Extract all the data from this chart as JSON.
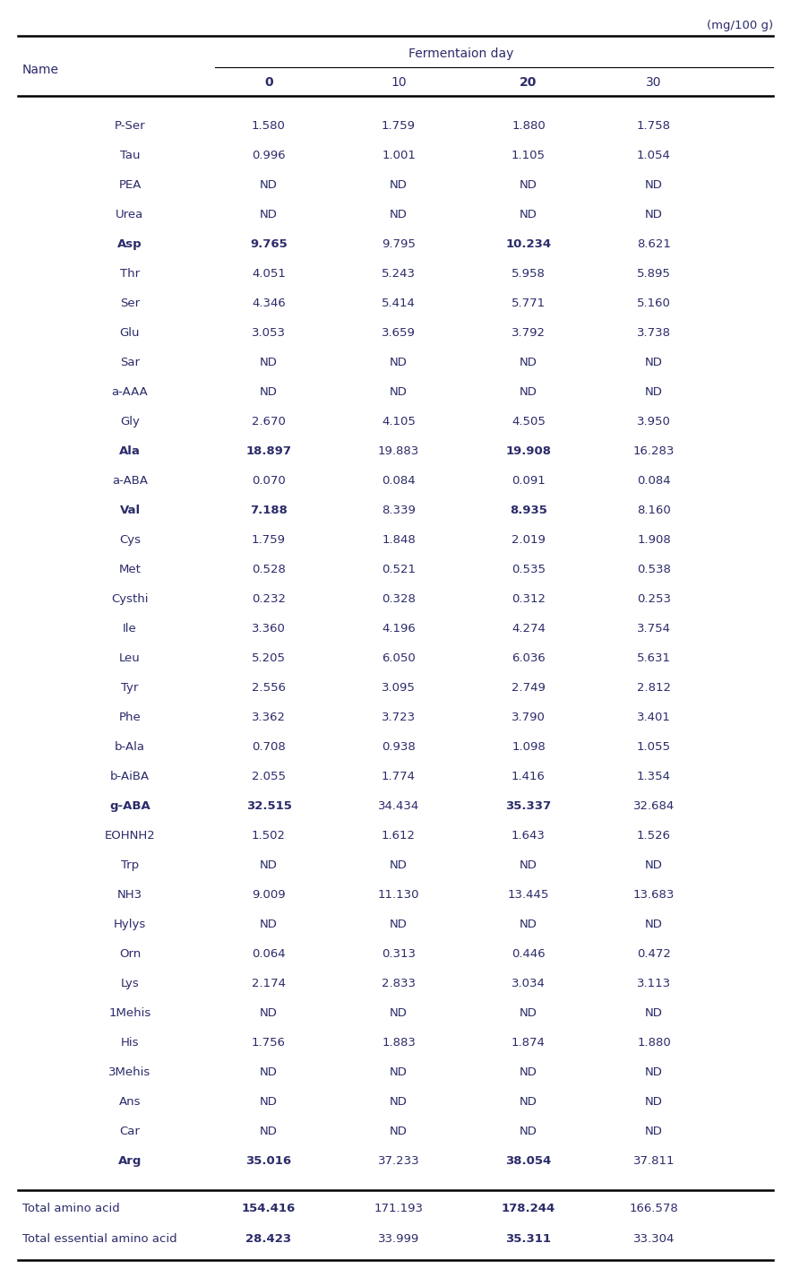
{
  "unit_label": "(mg/100 g)",
  "header_main": "Fermentaion day",
  "col_headers": [
    "0",
    "10",
    "20",
    "30"
  ],
  "col_name": "Name",
  "rows": [
    {
      "name": "P-Ser",
      "bold_name": false,
      "vals": [
        "1.580",
        "1.759",
        "1.880",
        "1.758"
      ],
      "bold_vals": [
        false,
        false,
        false,
        false
      ]
    },
    {
      "name": "Tau",
      "bold_name": false,
      "vals": [
        "0.996",
        "1.001",
        "1.105",
        "1.054"
      ],
      "bold_vals": [
        false,
        false,
        false,
        false
      ]
    },
    {
      "name": "PEA",
      "bold_name": false,
      "vals": [
        "ND",
        "ND",
        "ND",
        "ND"
      ],
      "bold_vals": [
        false,
        false,
        false,
        false
      ]
    },
    {
      "name": "Urea",
      "bold_name": false,
      "vals": [
        "ND",
        "ND",
        "ND",
        "ND"
      ],
      "bold_vals": [
        false,
        false,
        false,
        false
      ]
    },
    {
      "name": "Asp",
      "bold_name": true,
      "vals": [
        "9.765",
        "9.795",
        "10.234",
        "8.621"
      ],
      "bold_vals": [
        true,
        false,
        true,
        false
      ]
    },
    {
      "name": "Thr",
      "bold_name": false,
      "vals": [
        "4.051",
        "5.243",
        "5.958",
        "5.895"
      ],
      "bold_vals": [
        false,
        false,
        false,
        false
      ]
    },
    {
      "name": "Ser",
      "bold_name": false,
      "vals": [
        "4.346",
        "5.414",
        "5.771",
        "5.160"
      ],
      "bold_vals": [
        false,
        false,
        false,
        false
      ]
    },
    {
      "name": "Glu",
      "bold_name": false,
      "vals": [
        "3.053",
        "3.659",
        "3.792",
        "3.738"
      ],
      "bold_vals": [
        false,
        false,
        false,
        false
      ]
    },
    {
      "name": "Sar",
      "bold_name": false,
      "vals": [
        "ND",
        "ND",
        "ND",
        "ND"
      ],
      "bold_vals": [
        false,
        false,
        false,
        false
      ]
    },
    {
      "name": "a-AAA",
      "bold_name": false,
      "vals": [
        "ND",
        "ND",
        "ND",
        "ND"
      ],
      "bold_vals": [
        false,
        false,
        false,
        false
      ]
    },
    {
      "name": "Gly",
      "bold_name": false,
      "vals": [
        "2.670",
        "4.105",
        "4.505",
        "3.950"
      ],
      "bold_vals": [
        false,
        false,
        false,
        false
      ]
    },
    {
      "name": "Ala",
      "bold_name": true,
      "vals": [
        "18.897",
        "19.883",
        "19.908",
        "16.283"
      ],
      "bold_vals": [
        true,
        false,
        true,
        false
      ]
    },
    {
      "name": "a-ABA",
      "bold_name": false,
      "vals": [
        "0.070",
        "0.084",
        "0.091",
        "0.084"
      ],
      "bold_vals": [
        false,
        false,
        false,
        false
      ]
    },
    {
      "name": "Val",
      "bold_name": true,
      "vals": [
        "7.188",
        "8.339",
        "8.935",
        "8.160"
      ],
      "bold_vals": [
        true,
        false,
        true,
        false
      ]
    },
    {
      "name": "Cys",
      "bold_name": false,
      "vals": [
        "1.759",
        "1.848",
        "2.019",
        "1.908"
      ],
      "bold_vals": [
        false,
        false,
        false,
        false
      ]
    },
    {
      "name": "Met",
      "bold_name": false,
      "vals": [
        "0.528",
        "0.521",
        "0.535",
        "0.538"
      ],
      "bold_vals": [
        false,
        false,
        false,
        false
      ]
    },
    {
      "name": "Cysthi",
      "bold_name": false,
      "vals": [
        "0.232",
        "0.328",
        "0.312",
        "0.253"
      ],
      "bold_vals": [
        false,
        false,
        false,
        false
      ]
    },
    {
      "name": "Ile",
      "bold_name": false,
      "vals": [
        "3.360",
        "4.196",
        "4.274",
        "3.754"
      ],
      "bold_vals": [
        false,
        false,
        false,
        false
      ]
    },
    {
      "name": "Leu",
      "bold_name": false,
      "vals": [
        "5.205",
        "6.050",
        "6.036",
        "5.631"
      ],
      "bold_vals": [
        false,
        false,
        false,
        false
      ]
    },
    {
      "name": "Tyr",
      "bold_name": false,
      "vals": [
        "2.556",
        "3.095",
        "2.749",
        "2.812"
      ],
      "bold_vals": [
        false,
        false,
        false,
        false
      ]
    },
    {
      "name": "Phe",
      "bold_name": false,
      "vals": [
        "3.362",
        "3.723",
        "3.790",
        "3.401"
      ],
      "bold_vals": [
        false,
        false,
        false,
        false
      ]
    },
    {
      "name": "b-Ala",
      "bold_name": false,
      "vals": [
        "0.708",
        "0.938",
        "1.098",
        "1.055"
      ],
      "bold_vals": [
        false,
        false,
        false,
        false
      ]
    },
    {
      "name": "b-AiBA",
      "bold_name": false,
      "vals": [
        "2.055",
        "1.774",
        "1.416",
        "1.354"
      ],
      "bold_vals": [
        false,
        false,
        false,
        false
      ]
    },
    {
      "name": "g-ABA",
      "bold_name": true,
      "vals": [
        "32.515",
        "34.434",
        "35.337",
        "32.684"
      ],
      "bold_vals": [
        true,
        false,
        true,
        false
      ]
    },
    {
      "name": "EOHNH2",
      "bold_name": false,
      "vals": [
        "1.502",
        "1.612",
        "1.643",
        "1.526"
      ],
      "bold_vals": [
        false,
        false,
        false,
        false
      ]
    },
    {
      "name": "Trp",
      "bold_name": false,
      "vals": [
        "ND",
        "ND",
        "ND",
        "ND"
      ],
      "bold_vals": [
        false,
        false,
        false,
        false
      ]
    },
    {
      "name": "NH3",
      "bold_name": false,
      "vals": [
        "9.009",
        "11.130",
        "13.445",
        "13.683"
      ],
      "bold_vals": [
        false,
        false,
        false,
        false
      ]
    },
    {
      "name": "Hylys",
      "bold_name": false,
      "vals": [
        "ND",
        "ND",
        "ND",
        "ND"
      ],
      "bold_vals": [
        false,
        false,
        false,
        false
      ]
    },
    {
      "name": "Orn",
      "bold_name": false,
      "vals": [
        "0.064",
        "0.313",
        "0.446",
        "0.472"
      ],
      "bold_vals": [
        false,
        false,
        false,
        false
      ]
    },
    {
      "name": "Lys",
      "bold_name": false,
      "vals": [
        "2.174",
        "2.833",
        "3.034",
        "3.113"
      ],
      "bold_vals": [
        false,
        false,
        false,
        false
      ]
    },
    {
      "name": "1Mehis",
      "bold_name": false,
      "vals": [
        "ND",
        "ND",
        "ND",
        "ND"
      ],
      "bold_vals": [
        false,
        false,
        false,
        false
      ]
    },
    {
      "name": "His",
      "bold_name": false,
      "vals": [
        "1.756",
        "1.883",
        "1.874",
        "1.880"
      ],
      "bold_vals": [
        false,
        false,
        false,
        false
      ]
    },
    {
      "name": "3Mehis",
      "bold_name": false,
      "vals": [
        "ND",
        "ND",
        "ND",
        "ND"
      ],
      "bold_vals": [
        false,
        false,
        false,
        false
      ]
    },
    {
      "name": "Ans",
      "bold_name": false,
      "vals": [
        "ND",
        "ND",
        "ND",
        "ND"
      ],
      "bold_vals": [
        false,
        false,
        false,
        false
      ]
    },
    {
      "name": "Car",
      "bold_name": false,
      "vals": [
        "ND",
        "ND",
        "ND",
        "ND"
      ],
      "bold_vals": [
        false,
        false,
        false,
        false
      ]
    },
    {
      "name": "Arg",
      "bold_name": true,
      "vals": [
        "35.016",
        "37.233",
        "38.054",
        "37.811"
      ],
      "bold_vals": [
        true,
        false,
        true,
        false
      ]
    }
  ],
  "footer_rows": [
    {
      "name": "Total amino acid",
      "bold_name": false,
      "vals": [
        "154.416",
        "171.193",
        "178.244",
        "166.578"
      ],
      "bold_vals": [
        true,
        false,
        true,
        false
      ]
    },
    {
      "name": "Total essential amino acid",
      "bold_name": false,
      "vals": [
        "28.423",
        "33.999",
        "35.311",
        "33.304"
      ],
      "bold_vals": [
        true,
        false,
        true,
        false
      ]
    }
  ],
  "col_header_bold": [
    true,
    false,
    true,
    false
  ],
  "text_color": "#2b2b6b",
  "bg_color": "#ffffff",
  "font_size": 9.5,
  "header_font_size": 10.0
}
